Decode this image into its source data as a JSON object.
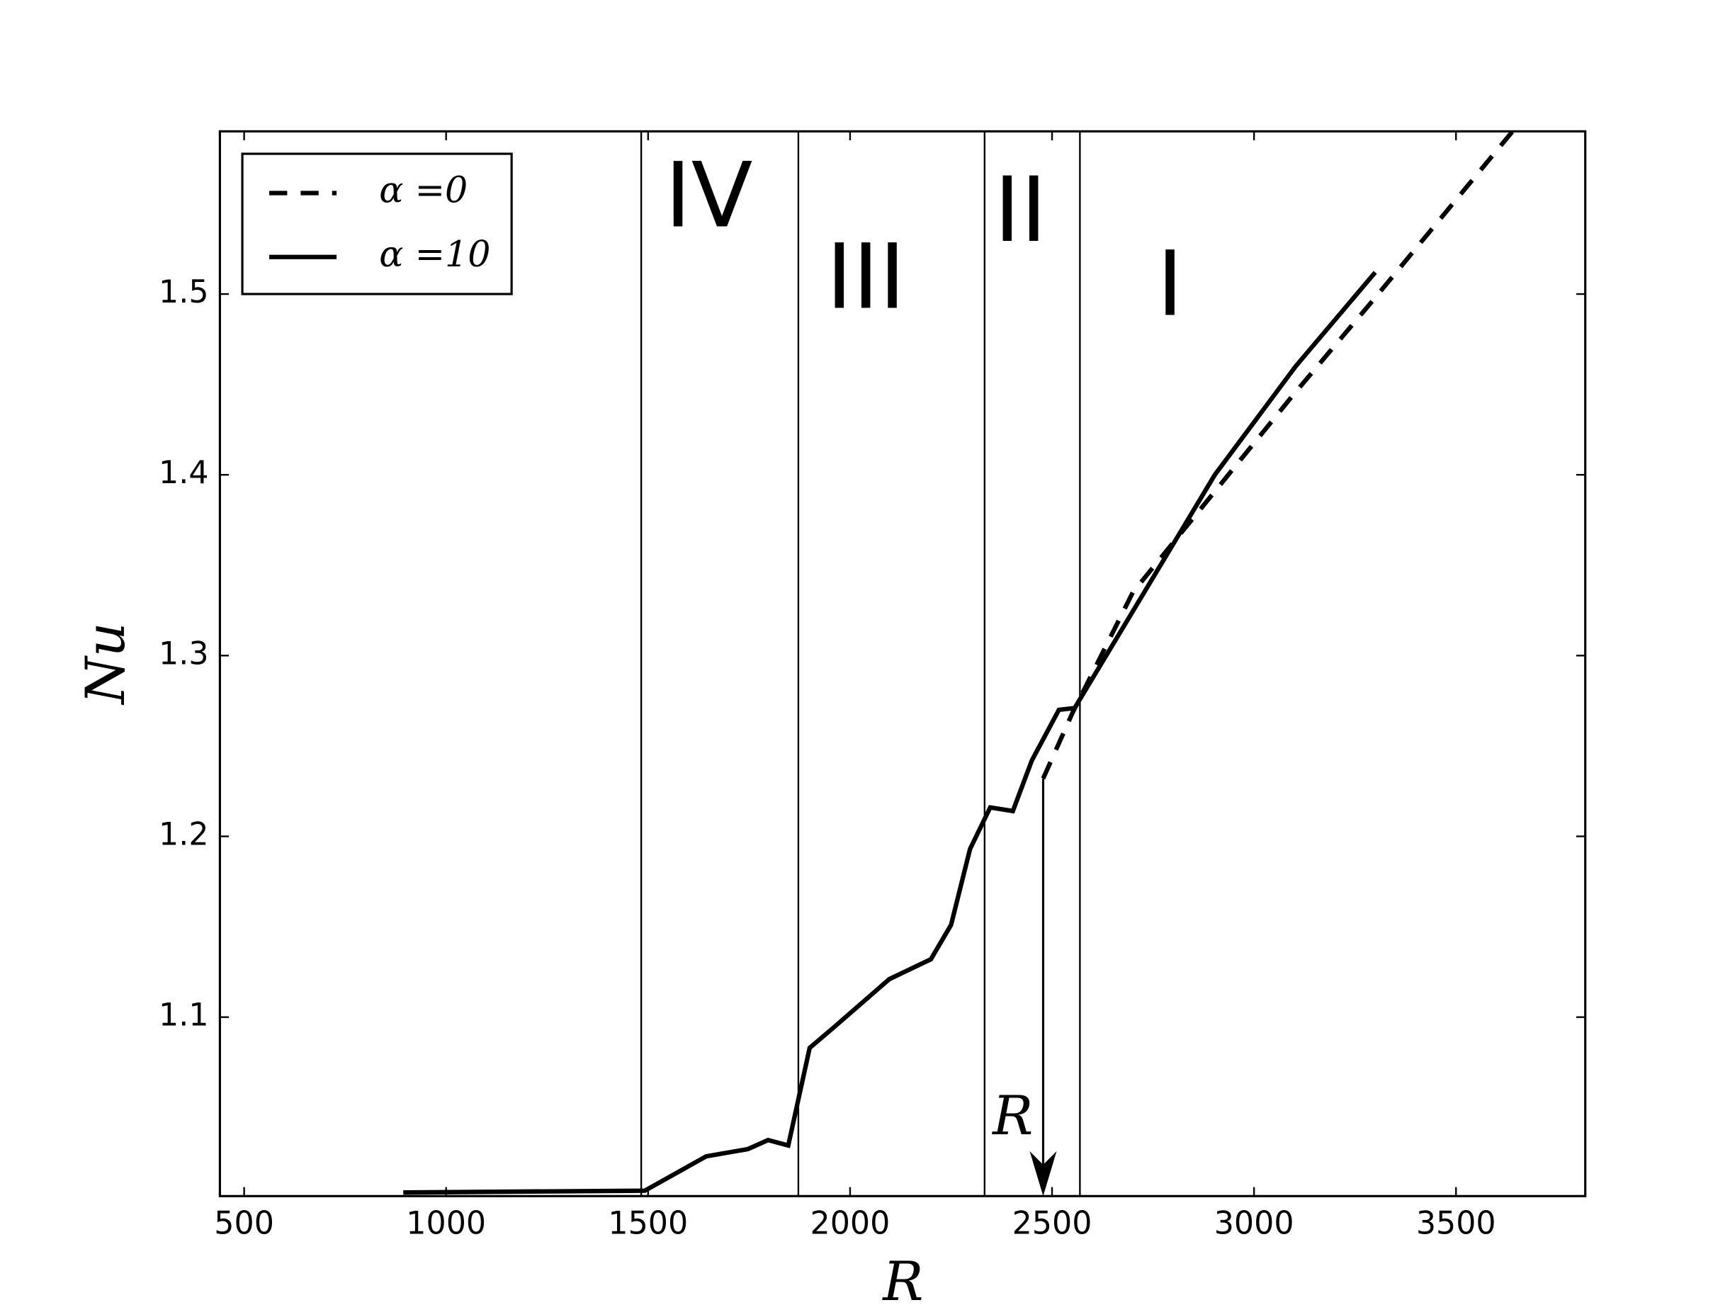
{
  "chart_data": {
    "type": "line",
    "x_label": "R",
    "y_label": "Nu",
    "xlim": [
      440,
      3820
    ],
    "ylim": [
      1.001,
      1.59
    ],
    "xticks": [
      500,
      1000,
      1500,
      2000,
      2500,
      3000,
      3500
    ],
    "yticks": [
      1.1,
      1.2,
      1.3,
      1.4,
      1.5
    ],
    "legend": "upper left",
    "series": [
      {
        "name": "α =0",
        "color": "#000000",
        "linestyle": "dashed",
        "x": [
          2478,
          2550,
          2700,
          2900,
          3100,
          3300,
          3640
        ],
        "values": [
          1.232,
          1.268,
          1.335,
          1.39,
          1.445,
          1.498,
          1.59
        ]
      },
      {
        "name": "α =10",
        "color": "#000000",
        "linestyle": "solid",
        "x": [
          894,
          1492,
          1644,
          1747,
          1797,
          1847,
          1900,
          1958,
          2097,
          2200,
          2250,
          2297,
          2347,
          2403,
          2450,
          2517,
          2556,
          2903,
          3103,
          3300
        ],
        "values": [
          1.003,
          1.004,
          1.023,
          1.027,
          1.032,
          1.029,
          1.083,
          1.094,
          1.121,
          1.132,
          1.151,
          1.193,
          1.216,
          1.214,
          1.242,
          1.27,
          1.271,
          1.4,
          1.46,
          1.512
        ]
      }
    ],
    "vlines": [
      1483,
      1872,
      2333,
      2569
    ],
    "regions": [
      {
        "text": "IV",
        "x": 1650,
        "y": 1.551
      },
      {
        "text": "III",
        "x": 2039,
        "y": 1.506
      },
      {
        "text": "II",
        "x": 2422,
        "y": 1.543
      },
      {
        "text": "I",
        "x": 2792,
        "y": 1.502
      }
    ],
    "annotations": [
      {
        "text": "R",
        "x": 2478,
        "y": 1.232,
        "text_x": 2403,
        "text_y": 1.043
      }
    ]
  }
}
